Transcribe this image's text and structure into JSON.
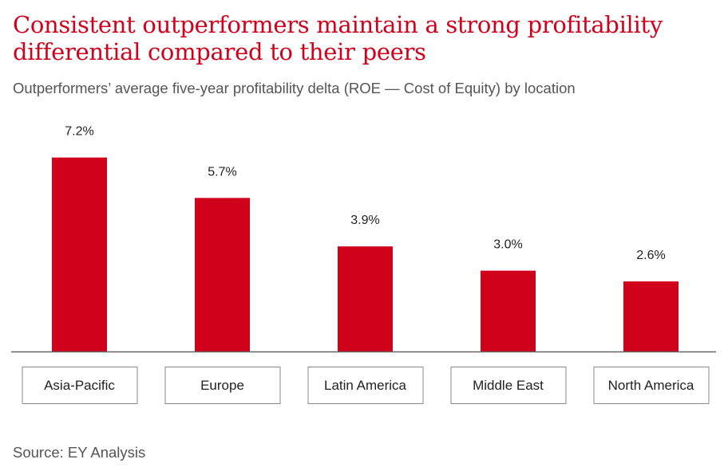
{
  "title": "Consistent outperformers maintain a strong profitability differential compared to their peers",
  "subtitle": "Outperformers’ average five-year profitability delta (ROE — Cost of Equity) by location",
  "source": "Source: EY Analysis",
  "colors": {
    "bar": "#d0021b",
    "title": "#d0021b",
    "axis": "#666666"
  },
  "chart_data": {
    "type": "bar",
    "categories": [
      "Asia-Pacific",
      "Europe",
      "Latin America",
      "Middle East",
      "North America"
    ],
    "values": [
      7.2,
      5.7,
      3.9,
      3.0,
      2.6
    ],
    "value_labels": [
      "7.2%",
      "5.7%",
      "3.9%",
      "3.0%",
      "2.6%"
    ],
    "title": "",
    "xlabel": "",
    "ylabel": "",
    "unit": "%",
    "ylim": [
      0,
      8.0
    ],
    "grid": false,
    "legend": "none"
  }
}
